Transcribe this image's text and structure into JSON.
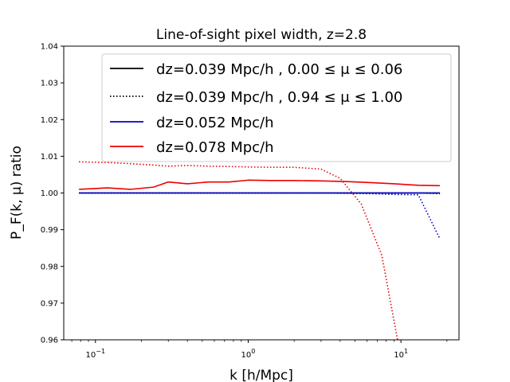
{
  "chart_data": {
    "type": "line",
    "title": "Line-of-sight pixel width, z=2.8",
    "xlabel": "k [h/Mpc]",
    "ylabel": "P_F(k, μ) ratio",
    "xscale": "log",
    "xlim": [
      0.062,
      24
    ],
    "ylim": [
      0.96,
      1.04
    ],
    "yticks": [
      "0.96",
      "0.97",
      "0.98",
      "0.99",
      "1.00",
      "1.01",
      "1.02",
      "1.03",
      "1.04"
    ],
    "xticks": [
      {
        "value": 0.1,
        "base": "10",
        "exp": "−1"
      },
      {
        "value": 1,
        "base": "10",
        "exp": "0"
      },
      {
        "value": 10,
        "base": "10",
        "exp": "1"
      }
    ],
    "legend_position": "upper-right",
    "legend": [
      {
        "label": "dz=0.039 Mpc/h , 0.00  ≤ μ ≤  0.06",
        "color": "#000000",
        "style": "solid"
      },
      {
        "label": "dz=0.039 Mpc/h , 0.94  ≤ μ ≤  1.00",
        "color": "#000000",
        "style": "dotted"
      },
      {
        "label": "dz=0.052 Mpc/h",
        "color": "#0000cc",
        "style": "solid"
      },
      {
        "label": "dz=0.078 Mpc/h",
        "color": "#ee0000",
        "style": "solid"
      }
    ],
    "series": [
      {
        "name": "dz=0.039 low mu",
        "color": "#000000",
        "style": "solid",
        "x": [
          0.078,
          0.12,
          0.17,
          0.24,
          0.3,
          0.4,
          0.55,
          0.75,
          1.0,
          1.4,
          2.0,
          3.0,
          4.5,
          6.5,
          9.0,
          13.0,
          18.0
        ],
        "y": [
          1.0,
          1.0,
          1.0,
          1.0,
          1.0,
          1.0,
          1.0,
          1.0,
          1.0,
          1.0,
          1.0,
          1.0,
          1.0,
          1.0,
          1.0,
          1.0,
          1.0
        ]
      },
      {
        "name": "dz=0.039 high mu",
        "color": "#000000",
        "style": "dotted",
        "x": [
          0.078,
          0.12,
          0.17,
          0.24,
          0.3,
          0.4,
          0.55,
          0.75,
          1.0,
          1.4,
          2.0,
          3.0,
          4.5,
          6.5,
          9.0,
          13.0,
          18.0
        ],
        "y": [
          1.0,
          1.0,
          1.0,
          1.0,
          1.0,
          1.0,
          1.0,
          1.0,
          1.0,
          1.0,
          1.0,
          1.0,
          1.0,
          1.0,
          1.0,
          1.0,
          0.9998
        ]
      },
      {
        "name": "dz=0.052 low mu",
        "color": "#0000cc",
        "style": "solid",
        "x": [
          0.078,
          0.12,
          0.17,
          0.24,
          0.3,
          0.4,
          0.55,
          0.75,
          1.0,
          1.4,
          2.0,
          3.0,
          4.5,
          6.5,
          9.0,
          13.0,
          18.0
        ],
        "y": [
          1.0,
          1.0,
          1.0,
          1.0,
          1.0,
          1.0,
          1.0,
          1.0,
          1.0,
          1.0,
          1.0,
          1.0,
          1.0,
          1.0,
          1.0,
          1.0,
          1.0
        ]
      },
      {
        "name": "dz=0.052 high mu",
        "color": "#0000cc",
        "style": "dotted",
        "x": [
          0.078,
          0.12,
          0.17,
          0.24,
          0.3,
          0.4,
          0.55,
          0.75,
          1.0,
          1.4,
          2.0,
          3.0,
          4.5,
          6.5,
          9.0,
          13.0,
          18.0
        ],
        "y": [
          1.0,
          1.0,
          1.0,
          1.0,
          1.0,
          1.0,
          1.0,
          1.0,
          1.0,
          1.0,
          1.0,
          1.0,
          0.9999,
          0.9998,
          0.9996,
          0.9995,
          0.9875
        ]
      },
      {
        "name": "dz=0.078 low mu",
        "color": "#ee0000",
        "style": "solid",
        "x": [
          0.078,
          0.12,
          0.17,
          0.24,
          0.3,
          0.4,
          0.55,
          0.75,
          1.0,
          1.4,
          2.0,
          3.0,
          4.5,
          6.5,
          9.0,
          13.0,
          18.0
        ],
        "y": [
          1.001,
          1.0014,
          1.001,
          1.0016,
          1.003,
          1.0025,
          1.003,
          1.003,
          1.0035,
          1.0034,
          1.0034,
          1.0033,
          1.0031,
          1.0028,
          1.0025,
          1.0021,
          1.002
        ]
      },
      {
        "name": "dz=0.078 high mu",
        "color": "#ee0000",
        "style": "dotted",
        "x": [
          0.078,
          0.12,
          0.17,
          0.24,
          0.3,
          0.4,
          0.55,
          0.75,
          1.0,
          1.4,
          2.0,
          3.0,
          4.0,
          5.5,
          7.5,
          9.5
        ],
        "y": [
          1.0085,
          1.0083,
          1.008,
          1.0076,
          1.0073,
          1.0075,
          1.0073,
          1.0072,
          1.0071,
          1.007,
          1.007,
          1.0065,
          1.004,
          0.997,
          0.983,
          0.96
        ]
      }
    ]
  }
}
